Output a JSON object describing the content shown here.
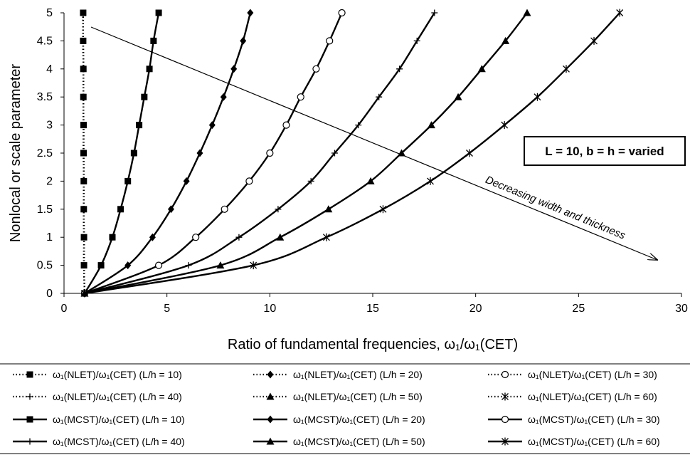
{
  "chart_data": {
    "type": "line",
    "title": "",
    "xlabel": "Ratio of fundamental frequencies, ω₁/ω₁(CET)",
    "ylabel": "Nonlocal or scale parameter",
    "xlim": [
      0,
      30
    ],
    "ylim": [
      0,
      5
    ],
    "x_ticks": [
      "0",
      "5",
      "10",
      "15",
      "20",
      "25",
      "30"
    ],
    "y_ticks": [
      "0",
      "0.5",
      "1",
      "1.5",
      "2",
      "2.5",
      "3",
      "3.5",
      "4",
      "4.5",
      "5"
    ],
    "grid": false,
    "legend_position": "bottom",
    "annotations": {
      "arrow_label": "Decreasing width and thickness",
      "box_label": "L = 10, b = h = varied"
    },
    "y_values": [
      0,
      0.5,
      1,
      1.5,
      2,
      2.5,
      3,
      3.5,
      4,
      4.5,
      5
    ],
    "series": [
      {
        "name": "ω₁(NLET)/ω₁(CET) (L/h = 10)",
        "marker": "square",
        "dash": "dotted",
        "x": [
          1.0,
          0.97,
          0.97,
          0.96,
          0.96,
          0.95,
          0.95,
          0.94,
          0.94,
          0.93,
          0.93
        ]
      },
      {
        "name": "ω₁(NLET)/ω₁(CET) (L/h = 20)",
        "marker": "diamond",
        "dash": "dotted",
        "x": [
          1.0,
          0.97,
          0.97,
          0.96,
          0.96,
          0.95,
          0.95,
          0.94,
          0.94,
          0.93,
          0.93
        ]
      },
      {
        "name": "ω₁(NLET)/ω₁(CET) (L/h = 30)",
        "marker": "circle",
        "dash": "dotted",
        "x": [
          1.0,
          0.97,
          0.97,
          0.96,
          0.96,
          0.95,
          0.95,
          0.94,
          0.94,
          0.93,
          0.93
        ]
      },
      {
        "name": "ω₁(NLET)/ω₁(CET) (L/h = 40)",
        "marker": "plus",
        "dash": "dotted",
        "x": [
          1.0,
          0.97,
          0.97,
          0.96,
          0.96,
          0.95,
          0.95,
          0.94,
          0.94,
          0.93,
          0.93
        ]
      },
      {
        "name": "ω₁(NLET)/ω₁(CET) (L/h = 50)",
        "marker": "triangle",
        "dash": "dotted",
        "x": [
          1.0,
          0.97,
          0.97,
          0.96,
          0.96,
          0.95,
          0.95,
          0.94,
          0.94,
          0.93,
          0.93
        ]
      },
      {
        "name": "ω₁(NLET)/ω₁(CET) (L/h = 60)",
        "marker": "star",
        "dash": "dotted",
        "x": [
          1.0,
          0.97,
          0.97,
          0.96,
          0.96,
          0.95,
          0.95,
          0.94,
          0.94,
          0.93,
          0.93
        ]
      },
      {
        "name": "ω₁(MCST)/ω₁(CET) (L/h = 10)",
        "marker": "square",
        "dash": "solid",
        "x": [
          1.0,
          1.8,
          2.35,
          2.75,
          3.1,
          3.4,
          3.65,
          3.9,
          4.15,
          4.35,
          4.6
        ]
      },
      {
        "name": "ω₁(MCST)/ω₁(CET) (L/h = 20)",
        "marker": "diamond",
        "dash": "solid",
        "x": [
          1.0,
          3.1,
          4.3,
          5.2,
          5.95,
          6.6,
          7.2,
          7.75,
          8.25,
          8.7,
          9.05
        ]
      },
      {
        "name": "ω₁(MCST)/ω₁(CET) (L/h = 30)",
        "marker": "circle",
        "dash": "solid",
        "x": [
          1.0,
          4.6,
          6.4,
          7.8,
          9.0,
          10.0,
          10.8,
          11.5,
          12.25,
          12.9,
          13.5
        ]
      },
      {
        "name": "ω₁(MCST)/ω₁(CET) (L/h = 40)",
        "marker": "plus",
        "dash": "solid",
        "x": [
          1.0,
          6.05,
          8.5,
          10.4,
          12.0,
          13.15,
          14.3,
          15.3,
          16.3,
          17.15,
          18.0
        ]
      },
      {
        "name": "ω₁(MCST)/ω₁(CET) (L/h = 50)",
        "marker": "triangle",
        "dash": "solid",
        "x": [
          1.0,
          7.6,
          10.5,
          12.85,
          14.9,
          16.4,
          17.85,
          19.15,
          20.3,
          21.45,
          22.5
        ]
      },
      {
        "name": "ω₁(MCST)/ω₁(CET) (L/h = 60)",
        "marker": "star",
        "dash": "solid",
        "x": [
          1.0,
          9.2,
          12.75,
          15.5,
          17.8,
          19.7,
          21.4,
          23.0,
          24.4,
          25.75,
          27.0
        ]
      }
    ]
  }
}
